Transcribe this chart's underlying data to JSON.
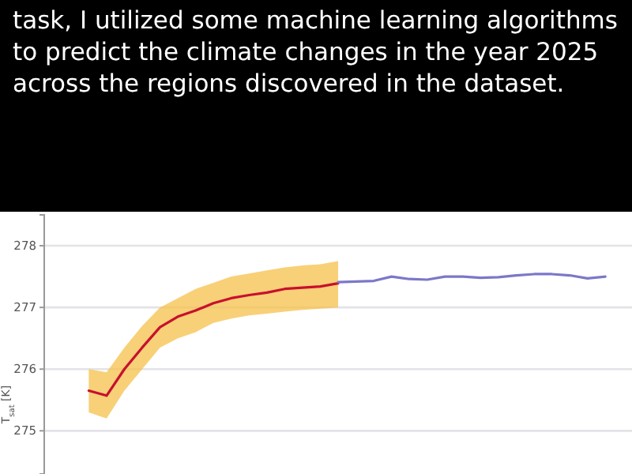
{
  "chart_data": {
    "type": "line",
    "title": "task, I utilized some machine learning algorithms to predict the climate changes in the year 2025 across the regions discovered in the dataset.",
    "ylabel": "T$_{sat}$ [K]",
    "categories": [
      null,
      null,
      null,
      null,
      null,
      null,
      null,
      null,
      null,
      null,
      null,
      null,
      null,
      null,
      null,
      null,
      null,
      null,
      null,
      null,
      null,
      null,
      null,
      null,
      null,
      null,
      null,
      null,
      null,
      null,
      null,
      null,
      null
    ],
    "ylim": [
      274.3,
      278.5
    ],
    "yticks": [
      275,
      276,
      277,
      278
    ],
    "grid": "y",
    "series": [
      {
        "color": "#c8102e",
        "values": [
          null,
          null,
          275.65,
          275.57,
          276.0,
          276.35,
          276.68,
          276.85,
          276.95,
          277.07,
          277.15,
          277.2,
          277.24,
          277.3,
          277.32,
          277.34,
          277.39,
          null,
          null,
          null,
          null,
          null,
          null,
          null,
          null,
          null,
          null,
          null,
          null,
          null,
          null,
          null,
          null
        ],
        "lower": [
          null,
          null,
          275.3,
          275.2,
          275.65,
          276.0,
          276.35,
          276.5,
          276.6,
          276.75,
          276.82,
          276.87,
          276.9,
          276.93,
          276.96,
          276.98,
          277.0,
          null,
          null,
          null,
          null,
          null,
          null,
          null,
          null,
          null,
          null,
          null,
          null,
          null,
          null,
          null,
          null
        ],
        "upper": [
          null,
          null,
          276.0,
          275.95,
          276.35,
          276.7,
          277.0,
          277.15,
          277.3,
          277.4,
          277.5,
          277.55,
          277.6,
          277.65,
          277.68,
          277.7,
          277.75,
          null,
          null,
          null,
          null,
          null,
          null,
          null,
          null,
          null,
          null,
          null,
          null,
          null,
          null,
          null,
          null
        ]
      },
      {
        "color": "#7b78c8",
        "values": [
          null,
          null,
          null,
          null,
          null,
          null,
          null,
          null,
          null,
          null,
          null,
          null,
          null,
          null,
          null,
          null,
          277.41,
          277.42,
          277.43,
          277.5,
          277.46,
          277.45,
          277.5,
          277.5,
          277.48,
          277.49,
          277.52,
          277.54,
          277.54,
          277.52,
          277.47,
          277.5,
          null
        ]
      }
    ]
  }
}
